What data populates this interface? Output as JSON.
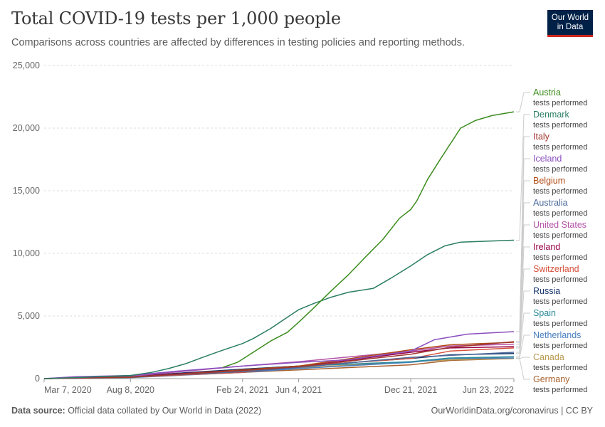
{
  "header": {
    "title": "Total COVID-19 tests per 1,000 people",
    "subtitle": "Comparisons across countries are affected by differences in testing policies and reporting methods.",
    "logo_line1": "Our World",
    "logo_line2": "in Data"
  },
  "footer": {
    "source_label": "Data source:",
    "source_text": " Official data collated by Our World in Data (2022)",
    "credit": "OurWorldinData.org/coronavirus | CC BY"
  },
  "chart_data": {
    "type": "line",
    "title": "Total COVID-19 tests per 1,000 people",
    "subtitle": "Comparisons across countries are affected by differences in testing policies and reporting methods.",
    "xlabel": "",
    "ylabel": "",
    "ylim": [
      0,
      25000
    ],
    "yticks": [
      0,
      5000,
      10000,
      15000,
      20000,
      25000
    ],
    "ytick_labels": [
      "0",
      "5,000",
      "10,000",
      "15,000",
      "20,000",
      "25,000"
    ],
    "x_range": [
      "2020-03-07",
      "2022-06-23"
    ],
    "xticks": [
      "2020-03-07",
      "2020-08-08",
      "2021-02-24",
      "2021-06-04",
      "2021-12-21",
      "2022-06-23"
    ],
    "xtick_labels": [
      "Mar 7, 2020",
      "Aug 8, 2020",
      "Feb 24, 2021",
      "Jun 4, 2021",
      "Dec 21, 2021",
      "Jun 23, 2022"
    ],
    "grid": "horizontal dashed",
    "legend_placement": "right",
    "legend_sublabel": "tests performed",
    "series": [
      {
        "name": "Austria",
        "color": "#3c8c1e",
        "points": [
          [
            "2021-01-20",
            900
          ],
          [
            "2021-02-15",
            1300
          ],
          [
            "2021-03-15",
            2100
          ],
          [
            "2021-04-15",
            3000
          ],
          [
            "2021-05-15",
            3700
          ],
          [
            "2021-06-04",
            4500
          ],
          [
            "2021-06-30",
            5600
          ],
          [
            "2021-08-01",
            7000
          ],
          [
            "2021-09-01",
            8300
          ],
          [
            "2021-10-01",
            9700
          ],
          [
            "2021-11-01",
            11100
          ],
          [
            "2021-12-01",
            12800
          ],
          [
            "2021-12-21",
            13500
          ],
          [
            "2022-01-01",
            14200
          ],
          [
            "2022-01-20",
            15900
          ],
          [
            "2022-02-10",
            17400
          ],
          [
            "2022-03-01",
            18700
          ],
          [
            "2022-03-20",
            20000
          ],
          [
            "2022-04-15",
            20600
          ],
          [
            "2022-05-15",
            21000
          ],
          [
            "2022-06-23",
            21300
          ]
        ]
      },
      {
        "name": "Denmark",
        "color": "#2a7d64",
        "points": [
          [
            "2020-03-07",
            0
          ],
          [
            "2020-05-01",
            80
          ],
          [
            "2020-08-08",
            250
          ],
          [
            "2020-09-15",
            500
          ],
          [
            "2020-10-15",
            800
          ],
          [
            "2020-11-15",
            1200
          ],
          [
            "2020-12-15",
            1700
          ],
          [
            "2021-01-15",
            2200
          ],
          [
            "2021-02-24",
            2800
          ],
          [
            "2021-03-15",
            3200
          ],
          [
            "2021-04-15",
            4000
          ],
          [
            "2021-05-15",
            4900
          ],
          [
            "2021-06-04",
            5500
          ],
          [
            "2021-07-01",
            6000
          ],
          [
            "2021-08-01",
            6500
          ],
          [
            "2021-09-01",
            6900
          ],
          [
            "2021-10-15",
            7200
          ],
          [
            "2021-11-15",
            8000
          ],
          [
            "2021-12-21",
            9000
          ],
          [
            "2022-01-20",
            9900
          ],
          [
            "2022-02-20",
            10600
          ],
          [
            "2022-03-20",
            10900
          ],
          [
            "2022-06-23",
            11050
          ]
        ]
      },
      {
        "name": "Italy",
        "color": "#a0362f",
        "points": [
          [
            "2020-03-07",
            0
          ],
          [
            "2020-08-08",
            120
          ],
          [
            "2021-02-24",
            650
          ],
          [
            "2021-06-04",
            950
          ],
          [
            "2021-12-21",
            1950
          ],
          [
            "2022-03-01",
            2500
          ],
          [
            "2022-06-23",
            2950
          ]
        ]
      },
      {
        "name": "Iceland",
        "color": "#8a4fbf",
        "points": [
          [
            "2020-03-07",
            0
          ],
          [
            "2020-05-01",
            150
          ],
          [
            "2020-08-08",
            250
          ],
          [
            "2020-11-01",
            600
          ],
          [
            "2021-02-24",
            1000
          ],
          [
            "2021-06-04",
            1300
          ],
          [
            "2021-09-01",
            1500
          ],
          [
            "2021-12-21",
            2200
          ],
          [
            "2022-02-01",
            3100
          ],
          [
            "2022-04-01",
            3550
          ],
          [
            "2022-06-23",
            3750
          ]
        ]
      },
      {
        "name": "Belgium",
        "color": "#b14a14",
        "points": [
          [
            "2020-03-07",
            0
          ],
          [
            "2020-08-08",
            100
          ],
          [
            "2021-02-24",
            700
          ],
          [
            "2021-06-04",
            1000
          ],
          [
            "2021-12-21",
            2300
          ],
          [
            "2022-03-01",
            2700
          ],
          [
            "2022-06-23",
            2900
          ]
        ]
      },
      {
        "name": "Australia",
        "color": "#4c6a9c",
        "points": [
          [
            "2020-03-07",
            0
          ],
          [
            "2020-08-08",
            150
          ],
          [
            "2021-02-24",
            550
          ],
          [
            "2021-06-04",
            900
          ],
          [
            "2021-12-21",
            1700
          ],
          [
            "2022-06-23",
            2100
          ]
        ]
      },
      {
        "name": "United States",
        "color": "#b552a8",
        "points": [
          [
            "2020-03-07",
            0
          ],
          [
            "2020-08-08",
            200
          ],
          [
            "2021-02-24",
            1000
          ],
          [
            "2021-06-04",
            1350
          ],
          [
            "2021-12-21",
            2200
          ],
          [
            "2022-03-01",
            2600
          ],
          [
            "2022-06-23",
            2750
          ]
        ]
      },
      {
        "name": "Ireland",
        "color": "#970046",
        "points": [
          [
            "2020-03-07",
            0
          ],
          [
            "2020-08-08",
            150
          ],
          [
            "2021-02-24",
            700
          ],
          [
            "2021-06-04",
            950
          ],
          [
            "2021-12-21",
            2100
          ],
          [
            "2022-03-01",
            2450
          ],
          [
            "2022-06-23",
            2550
          ]
        ]
      },
      {
        "name": "Switzerland",
        "color": "#d7503a",
        "points": [
          [
            "2020-03-07",
            0
          ],
          [
            "2020-08-08",
            120
          ],
          [
            "2021-02-24",
            500
          ],
          [
            "2021-06-04",
            1000
          ],
          [
            "2021-12-21",
            1600
          ],
          [
            "2022-03-01",
            2200
          ],
          [
            "2022-06-23",
            2450
          ]
        ]
      },
      {
        "name": "Russia",
        "color": "#18366b",
        "points": [
          [
            "2020-03-07",
            0
          ],
          [
            "2020-08-08",
            200
          ],
          [
            "2021-02-24",
            750
          ],
          [
            "2021-06-04",
            1000
          ],
          [
            "2021-12-21",
            1600
          ],
          [
            "2022-03-01",
            1900
          ],
          [
            "2022-06-23",
            2000
          ]
        ]
      },
      {
        "name": "Spain",
        "color": "#2a8b9a",
        "points": [
          [
            "2020-03-07",
            0
          ],
          [
            "2020-08-08",
            100
          ],
          [
            "2021-02-24",
            750
          ],
          [
            "2021-06-04",
            1000
          ],
          [
            "2021-12-21",
            1350
          ],
          [
            "2022-03-01",
            1650
          ],
          [
            "2022-06-23",
            1750
          ]
        ]
      },
      {
        "name": "Netherlands",
        "color": "#4a7fc0",
        "points": [
          [
            "2020-03-07",
            0
          ],
          [
            "2020-08-08",
            80
          ],
          [
            "2021-02-24",
            500
          ],
          [
            "2021-06-04",
            800
          ],
          [
            "2021-12-21",
            1300
          ],
          [
            "2022-03-01",
            1600
          ],
          [
            "2022-06-23",
            1650
          ]
        ]
      },
      {
        "name": "Canada",
        "color": "#b99950",
        "points": [
          [
            "2020-03-07",
            0
          ],
          [
            "2020-08-08",
            130
          ],
          [
            "2021-02-24",
            600
          ],
          [
            "2021-06-04",
            850
          ],
          [
            "2021-12-21",
            1350
          ],
          [
            "2022-03-01",
            1500
          ],
          [
            "2022-06-23",
            1600
          ]
        ]
      },
      {
        "name": "Germany",
        "color": "#a9622e",
        "points": [
          [
            "2020-03-07",
            0
          ],
          [
            "2020-08-08",
            120
          ],
          [
            "2021-02-24",
            500
          ],
          [
            "2021-06-04",
            700
          ],
          [
            "2021-12-21",
            1100
          ],
          [
            "2022-03-01",
            1450
          ],
          [
            "2022-06-23",
            1600
          ]
        ]
      }
    ]
  }
}
